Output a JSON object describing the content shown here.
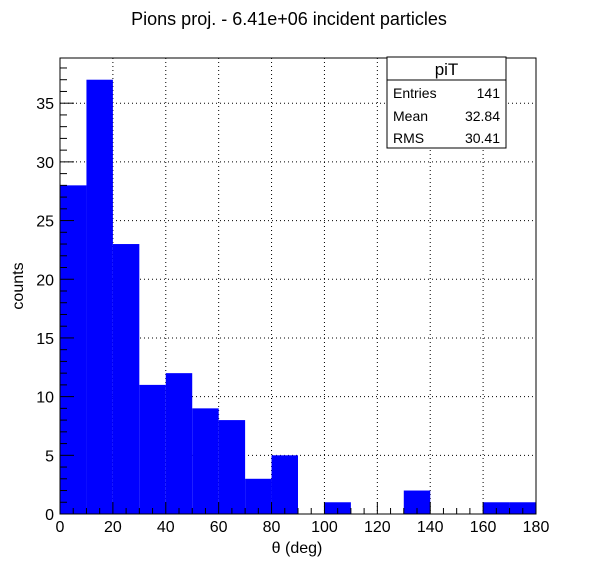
{
  "chart_data": {
    "type": "bar",
    "title": "Pions proj. - 6.41e+06 incident particles",
    "xlabel": "θ (deg)",
    "ylabel": "counts",
    "bin_edges": [
      0,
      10,
      20,
      30,
      40,
      50,
      60,
      70,
      80,
      90,
      100,
      110,
      120,
      130,
      140,
      150,
      160,
      170,
      180
    ],
    "values": [
      28,
      37,
      23,
      11,
      12,
      9,
      8,
      3,
      5,
      0,
      1,
      0,
      0,
      2,
      0,
      0,
      1,
      1
    ],
    "xlim": [
      0,
      180
    ],
    "ylim": [
      0,
      38.85
    ],
    "xticks": [
      0,
      20,
      40,
      60,
      80,
      100,
      120,
      140,
      160,
      180
    ],
    "yticks": [
      0,
      5,
      10,
      15,
      20,
      25,
      30,
      35
    ],
    "grid": true,
    "bar_color": "#0000ff",
    "stats_box": {
      "title": "piT",
      "placement": "top-right",
      "rows": [
        {
          "label": "Entries",
          "value": "141"
        },
        {
          "label": "Mean",
          "value": "32.84"
        },
        {
          "label": "RMS",
          "value": "30.41"
        }
      ]
    }
  }
}
